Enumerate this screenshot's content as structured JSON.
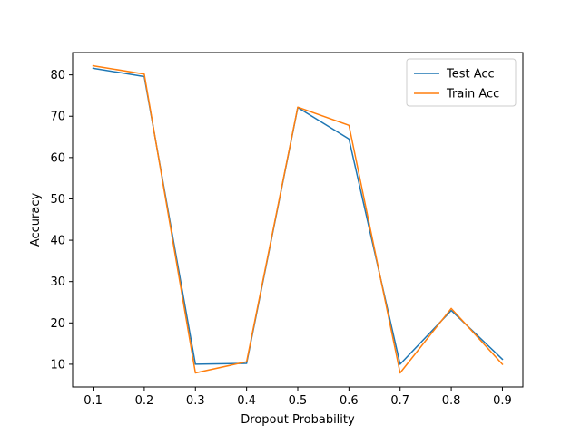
{
  "chart_data": {
    "type": "line",
    "title": "",
    "xlabel": "Dropout Probability",
    "ylabel": "Accuracy",
    "x": [
      0.1,
      0.2,
      0.3,
      0.4,
      0.5,
      0.6,
      0.7,
      0.8,
      0.9
    ],
    "x_tick_labels": [
      "0.1",
      "0.2",
      "0.3",
      "0.4",
      "0.5",
      "0.6",
      "0.7",
      "0.8",
      "0.9"
    ],
    "xlim": [
      0.06,
      0.94
    ],
    "ylim": [
      4.5,
      85.4
    ],
    "y_ticks": [
      10,
      20,
      30,
      40,
      50,
      60,
      70,
      80
    ],
    "grid": false,
    "legend_position": "upper-right",
    "series": [
      {
        "name": "Test Acc",
        "color": "#1f77b4",
        "values": [
          81.6,
          79.6,
          10.0,
          10.2,
          72.1,
          64.5,
          10.0,
          23.0,
          11.2
        ]
      },
      {
        "name": "Train Acc",
        "color": "#ff7f0e",
        "values": [
          82.2,
          80.2,
          7.9,
          10.6,
          72.2,
          67.8,
          7.9,
          23.5,
          10.0
        ]
      }
    ]
  }
}
